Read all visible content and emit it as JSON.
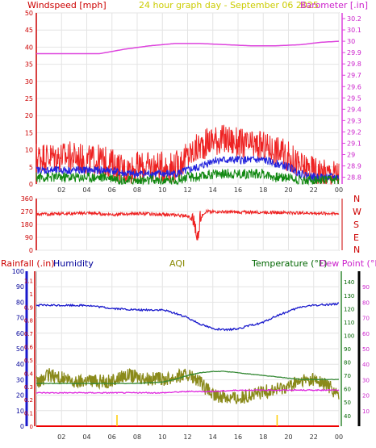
{
  "header": {
    "wind_title": "Windspeed [mph]",
    "center_title": "24 hour graph day - September 06 2025",
    "baro_title": "Barometer [.in]"
  },
  "colors": {
    "wind_gust": "#ee2222",
    "wind_avg": "#2222dd",
    "wind_low": "#118811",
    "baro": "#dd44dd",
    "dir": "#ee2222",
    "humidity": "#1a1acc",
    "aqi": "#8a8a1a",
    "temp": "#338833",
    "dew": "#dd22dd",
    "rain": "#ee0000",
    "rain_tick": "#ffcc00",
    "label_red": "#cc0000",
    "label_title": "#cccc00",
    "label_blue": "#000099",
    "label_green": "#006600"
  },
  "bottom_labels": {
    "rainfall": "Rainfall (.in)",
    "humidity": "Humidity",
    "aqi": "AQI",
    "temperature": "Temperature (°F)",
    "dewpoint": "Dew Point (°F)"
  },
  "dir_labels": [
    "N",
    "W",
    "S",
    "E",
    "N"
  ],
  "chart_data": [
    {
      "type": "line",
      "title": "24 hour graph day - September 06 2025",
      "ylabel": "Windspeed [mph]",
      "y2label": "Barometer [.in]",
      "x_ticks": [
        "02",
        "04",
        "06",
        "08",
        "10",
        "12",
        "14",
        "16",
        "18",
        "20",
        "22",
        "00"
      ],
      "y_ticks": [
        0,
        5,
        10,
        15,
        20,
        25,
        30,
        35,
        40,
        45,
        50
      ],
      "ylim": [
        0,
        50
      ],
      "y2_ticks": [
        28.8,
        28.9,
        29,
        29.1,
        29.2,
        29.3,
        29.4,
        29.5,
        29.6,
        29.7,
        29.8,
        29.9,
        30,
        30.1,
        30.2
      ],
      "y2lim": [
        28.74,
        30.25
      ],
      "series": [
        {
          "name": "Barometer",
          "axis": "right",
          "x": [
            0,
            3,
            5,
            7,
            9,
            11,
            13,
            15,
            17,
            19,
            21,
            22.5,
            24
          ],
          "values": [
            29.89,
            29.89,
            29.89,
            29.93,
            29.96,
            29.98,
            29.98,
            29.97,
            29.96,
            29.96,
            29.97,
            29.99,
            30.0
          ]
        },
        {
          "name": "Wind gust",
          "axis": "left",
          "x": [
            0,
            1,
            2,
            3,
            4,
            5,
            6,
            7,
            8,
            9,
            10,
            11,
            12,
            13,
            14,
            15,
            16,
            17,
            18,
            19,
            20,
            21,
            22,
            23,
            24
          ],
          "values": [
            8,
            8,
            8,
            8,
            7,
            7,
            6,
            4,
            5,
            5,
            5,
            5,
            8,
            11,
            13,
            13,
            12,
            11,
            11,
            10,
            8,
            5,
            4,
            3,
            3
          ]
        },
        {
          "name": "Wind average",
          "axis": "left",
          "x": [
            0,
            1,
            2,
            3,
            4,
            5,
            6,
            7,
            8,
            9,
            10,
            11,
            12,
            13,
            14,
            15,
            16,
            17,
            18,
            19,
            20,
            21,
            22,
            23,
            24
          ],
          "values": [
            4,
            4,
            4,
            4,
            4,
            4,
            4,
            3,
            3,
            3,
            3,
            3,
            4,
            5,
            7,
            7,
            7,
            7,
            7,
            6,
            5,
            3,
            2,
            2,
            2
          ]
        },
        {
          "name": "Wind low",
          "axis": "left",
          "x": [
            0,
            1,
            2,
            3,
            4,
            5,
            6,
            7,
            8,
            9,
            10,
            11,
            12,
            13,
            14,
            15,
            16,
            17,
            18,
            19,
            20,
            21,
            22,
            23,
            24
          ],
          "values": [
            2,
            2,
            2,
            2,
            2,
            2,
            2,
            1,
            1,
            1,
            1,
            1,
            2,
            2,
            3,
            3,
            3,
            3,
            3,
            2,
            2,
            1,
            1,
            1,
            1
          ]
        }
      ]
    },
    {
      "type": "line",
      "y_ticks": [
        0,
        90,
        180,
        270,
        360
      ],
      "ylim": [
        0,
        360
      ],
      "x_ticks": [
        "02",
        "04",
        "06",
        "08",
        "10",
        "12",
        "14",
        "16",
        "18",
        "20",
        "22",
        "00"
      ],
      "series": [
        {
          "name": "Wind direction",
          "x": [
            0,
            2,
            4,
            6,
            8,
            10,
            11,
            12,
            12.5,
            12.8,
            13,
            13.5,
            14,
            16,
            18,
            20,
            22,
            24
          ],
          "values": [
            250,
            255,
            258,
            250,
            255,
            250,
            245,
            240,
            200,
            60,
            240,
            270,
            268,
            265,
            265,
            262,
            258,
            255
          ]
        }
      ]
    },
    {
      "type": "line",
      "x_ticks": [
        "02",
        "04",
        "06",
        "08",
        "10",
        "12",
        "14",
        "16",
        "18",
        "20",
        "22",
        "00"
      ],
      "axes": {
        "humidity": {
          "ticks": [
            0,
            10,
            20,
            30,
            40,
            50,
            60,
            70,
            80,
            90,
            100
          ],
          "lim": [
            0,
            100
          ]
        },
        "rainfall": {
          "ticks": [
            0,
            0.1,
            0.2,
            0.3,
            0.4,
            0.5,
            0.6,
            0.7,
            0.8,
            0.9,
            1,
            1.1
          ],
          "lim": [
            0,
            1.17
          ]
        },
        "temperature": {
          "ticks": [
            40,
            50,
            60,
            70,
            80,
            90,
            100,
            110,
            120,
            130,
            140
          ],
          "lim": [
            32,
            148
          ]
        },
        "dewpoint": {
          "ticks": [
            10,
            20,
            30,
            40,
            50,
            60,
            70,
            80,
            90
          ],
          "lim": [
            0,
            100
          ]
        }
      },
      "series": [
        {
          "name": "Humidity",
          "axis": "humidity",
          "x": [
            0,
            2,
            4,
            6,
            8,
            10,
            11,
            12,
            13,
            14,
            15,
            16,
            17,
            18,
            19,
            20,
            21,
            22,
            24
          ],
          "values": [
            78,
            78,
            78,
            76,
            75,
            75,
            73,
            70,
            66,
            63,
            62,
            63,
            65,
            67,
            71,
            74,
            77,
            78,
            79
          ]
        },
        {
          "name": "AQI",
          "axis": "humidity",
          "x": [
            0,
            1,
            2,
            3,
            4,
            5,
            6,
            7,
            8,
            9,
            10,
            11,
            12,
            13,
            14,
            15,
            16,
            17,
            18,
            19,
            20,
            21,
            22,
            23,
            24
          ],
          "values": [
            27,
            33,
            31,
            28,
            30,
            29,
            29,
            33,
            32,
            31,
            30,
            32,
            33,
            28,
            20,
            19,
            18,
            20,
            22,
            24,
            26,
            29,
            30,
            27,
            20
          ]
        },
        {
          "name": "Temperature",
          "axis": "temperature",
          "x": [
            0,
            2,
            4,
            6,
            8,
            10,
            11,
            12,
            13,
            14,
            15,
            16,
            17,
            18,
            19,
            20,
            21,
            22,
            24
          ],
          "values": [
            64,
            64,
            64,
            64,
            64,
            65,
            67,
            70,
            72,
            73,
            73,
            72,
            71,
            70,
            69,
            68,
            67,
            67,
            67
          ]
        },
        {
          "name": "Dew Point",
          "axis": "temperature",
          "x": [
            0,
            2,
            4,
            6,
            8,
            10,
            12,
            14,
            16,
            18,
            20,
            22,
            24
          ],
          "values": [
            57,
            57,
            57,
            57,
            57,
            57,
            58,
            58,
            59,
            59,
            59,
            59,
            59
          ]
        },
        {
          "name": "Rainfall",
          "axis": "rainfall",
          "x": [
            0,
            24
          ],
          "values": [
            0,
            0
          ]
        }
      ],
      "rain_ticks_x": [
        6.4,
        19.1
      ]
    }
  ]
}
